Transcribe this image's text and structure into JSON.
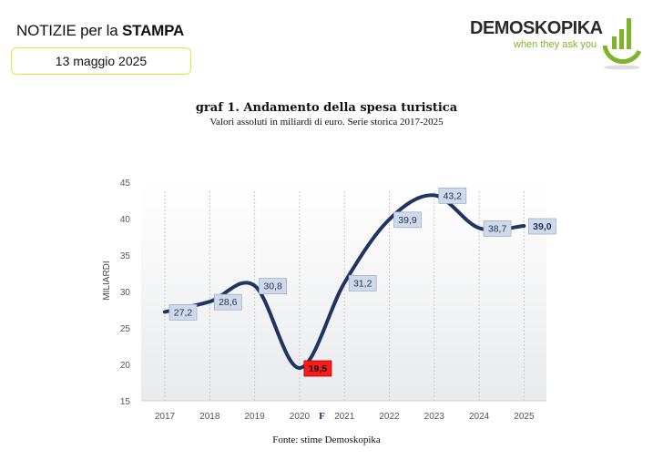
{
  "header": {
    "title_regular": "NOTIZIE per la ",
    "title_bold": "STAMPA",
    "date": "13 maggio 2025"
  },
  "logo": {
    "name": "DEMOSKOPIKA",
    "tagline": "when they ask you"
  },
  "colors": {
    "line": "#1f3463",
    "label_bg": "#cfd9ea",
    "highlight_bg": "#ff1a1a",
    "logo_green": "#7fb32a"
  },
  "chart_data": {
    "type": "line",
    "title": "graf 1. Andamento della spesa turistica",
    "subtitle": "Valori assoluti in miliardi di euro. Serie storica 2017-2025",
    "source": "Fonte: stime Demoskopika",
    "ylabel": "MILIARDI",
    "ylim": [
      15,
      45
    ],
    "yticks": [
      15,
      20,
      25,
      30,
      35,
      40,
      45
    ],
    "categories": [
      "2017",
      "2018",
      "2019",
      "2020",
      "2021",
      "2022",
      "2023",
      "2024",
      "2025"
    ],
    "values": [
      27.2,
      28.6,
      30.8,
      19.5,
      31.2,
      39.9,
      43.2,
      38.7,
      39.0
    ],
    "data_labels": [
      "27,2",
      "28,6",
      "30,8",
      "19,5",
      "31,2",
      "39,9",
      "43,2",
      "38,7",
      "39,0"
    ],
    "highlight_index": 3,
    "emphasis_index": 8,
    "annotation": "F",
    "smooth": true,
    "grid": "vertical-dotted"
  }
}
